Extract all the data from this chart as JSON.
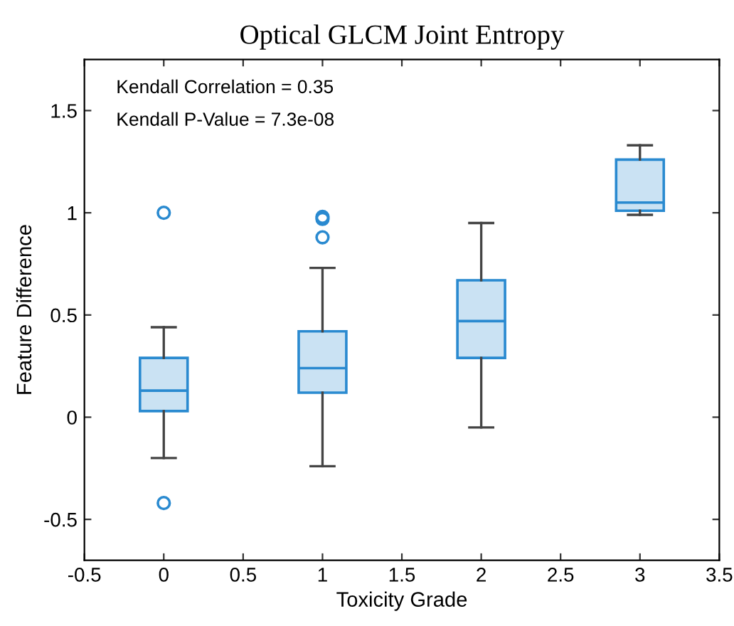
{
  "chart_data": {
    "type": "box",
    "title": "Optical GLCM Joint Entropy",
    "xlabel": "Toxicity Grade",
    "ylabel": "Feature Difference",
    "x": [
      0,
      1,
      2,
      3
    ],
    "boxes": [
      {
        "low": -0.2,
        "q1": 0.03,
        "median": 0.13,
        "q3": 0.29,
        "high": 0.44,
        "outliers": [
          1.0,
          -0.42
        ]
      },
      {
        "low": -0.24,
        "q1": 0.12,
        "median": 0.24,
        "q3": 0.42,
        "high": 0.73,
        "outliers": [
          0.97,
          0.98,
          0.88
        ]
      },
      {
        "low": -0.05,
        "q1": 0.29,
        "median": 0.47,
        "q3": 0.67,
        "high": 0.95
      },
      {
        "low": 0.99,
        "q1": 1.01,
        "median": 1.05,
        "q3": 1.26,
        "high": 1.33
      }
    ],
    "color": "#2a8ad0",
    "xlim": [
      -0.5,
      3.5
    ],
    "xticks": [
      -0.5,
      0,
      0.5,
      1,
      1.5,
      2,
      2.5,
      3,
      3.5
    ],
    "ylim": [
      -0.7,
      1.75
    ],
    "yticks": [
      -0.5,
      0,
      0.5,
      1,
      1.5
    ],
    "grid": false,
    "annotations": [
      "Kendall Correlation = 0.35",
      "Kendall P-Value = 7.3e-08"
    ]
  }
}
